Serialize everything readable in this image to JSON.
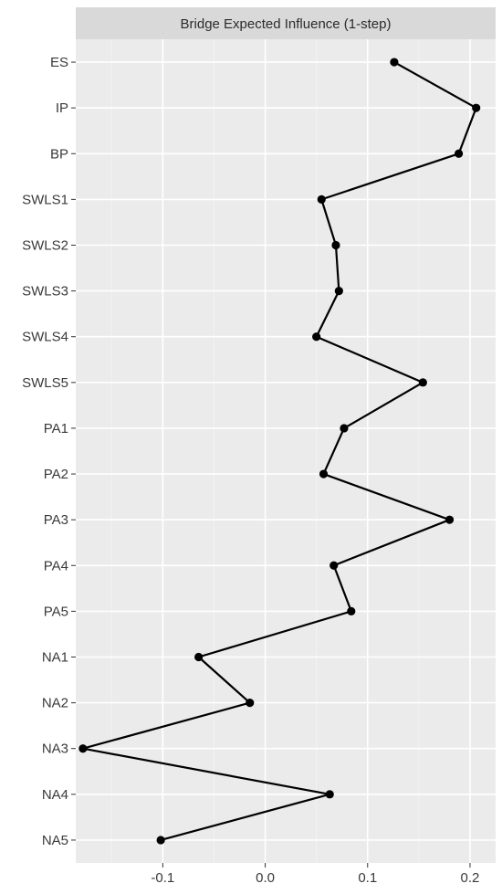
{
  "chart_data": {
    "type": "line",
    "orientation": "horizontal",
    "title": "Bridge Expected Influence (1-step)",
    "xlabel": "",
    "ylabel": "",
    "xlim": [
      -0.185,
      0.225
    ],
    "x_ticks": [
      -0.1,
      0.0,
      0.1,
      0.2
    ],
    "x_tick_labels": [
      "-0.1",
      "0.0",
      "0.1",
      "0.2"
    ],
    "grid": true,
    "legend": "none",
    "categories": [
      "ES",
      "IP",
      "BP",
      "SWLS1",
      "SWLS2",
      "SWLS3",
      "SWLS4",
      "SWLS5",
      "PA1",
      "PA2",
      "PA3",
      "PA4",
      "PA5",
      "NA1",
      "NA2",
      "NA3",
      "NA4",
      "NA5"
    ],
    "series": [
      {
        "values": [
          0.126,
          0.206,
          0.189,
          0.055,
          0.069,
          0.072,
          0.05,
          0.154,
          0.077,
          0.057,
          0.18,
          0.067,
          0.084,
          -0.065,
          -0.015,
          -0.178,
          0.063,
          -0.102
        ]
      }
    ]
  },
  "colors": {
    "panel_bg": "#ebebeb",
    "strip_bg": "#d9d9d9",
    "grid_major": "#ffffff",
    "grid_minor": "#f4f4f4",
    "line": "#000000",
    "text": "#3a3a3a"
  }
}
